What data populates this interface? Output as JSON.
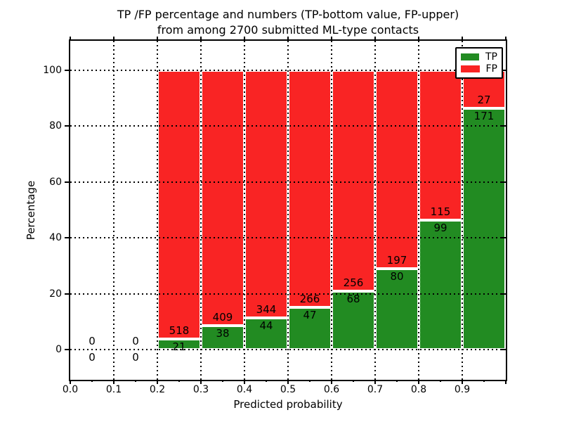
{
  "figure": {
    "title_line1": "TP /FP percentage and numbers (TP-bottom value, FP-upper)",
    "title_line2": "from among 2700 submitted ML-type contacts"
  },
  "chart_data": {
    "type": "bar",
    "stacked": true,
    "normalized_to_percent": true,
    "title": "TP /FP percentage and numbers (TP-bottom value, FP-upper)\nfrom among 2700 submitted ML-type contacts",
    "xlabel": "Predicted probability",
    "ylabel": "Percentage",
    "total_contacts": 2700,
    "bin_width": 0.1,
    "bin_starts": [
      0.0,
      0.1,
      0.2,
      0.3,
      0.4,
      0.5,
      0.6,
      0.7,
      0.8,
      0.9
    ],
    "x_tick_labels": [
      "0.0",
      "0.1",
      "0.2",
      "0.3",
      "0.4",
      "0.5",
      "0.6",
      "0.7",
      "0.8",
      "0.9"
    ],
    "y_ticks": [
      0,
      20,
      40,
      60,
      80,
      100
    ],
    "y_tick_labels": [
      "0",
      "20",
      "40",
      "60",
      "80",
      "100"
    ],
    "xlim": [
      0.0,
      1.0
    ],
    "ylim": [
      -11,
      111
    ],
    "grid": "dotted",
    "series": [
      {
        "name": "TP",
        "color": "#228b22",
        "counts": [
          0,
          0,
          21,
          38,
          44,
          47,
          68,
          80,
          99,
          171
        ]
      },
      {
        "name": "FP",
        "color": "#f92424",
        "counts": [
          0,
          0,
          518,
          409,
          344,
          266,
          256,
          197,
          115,
          27
        ]
      }
    ],
    "tp_percent": [
      0,
      0,
      3.9,
      8.5,
      11.34,
      15.02,
      20.99,
      28.88,
      46.26,
      86.36
    ],
    "legend": {
      "position": "upper right",
      "entries": [
        "TP",
        "FP"
      ]
    }
  }
}
